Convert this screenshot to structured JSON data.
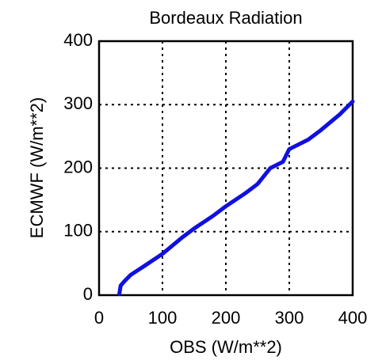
{
  "chart_data": {
    "type": "line",
    "title": "Bordeaux Radiation",
    "xlabel": "OBS (W/m**2)",
    "ylabel": "ECMWF (W/m**2)",
    "x": [
      32,
      34,
      40,
      50,
      70,
      100,
      130,
      150,
      180,
      200,
      230,
      250,
      270,
      290,
      300,
      330,
      350,
      380,
      400
    ],
    "series": [
      {
        "name": "ECMWF",
        "color": "#1010e0",
        "values": [
          2,
          15,
          22,
          32,
          45,
          65,
          90,
          105,
          125,
          140,
          160,
          175,
          200,
          210,
          230,
          245,
          260,
          285,
          305
        ]
      }
    ],
    "xlim": [
      0,
      400
    ],
    "ylim": [
      0,
      400
    ],
    "xticks": [
      0,
      100,
      200,
      300,
      400
    ],
    "yticks": [
      0,
      100,
      200,
      300,
      400
    ],
    "grid": true
  }
}
